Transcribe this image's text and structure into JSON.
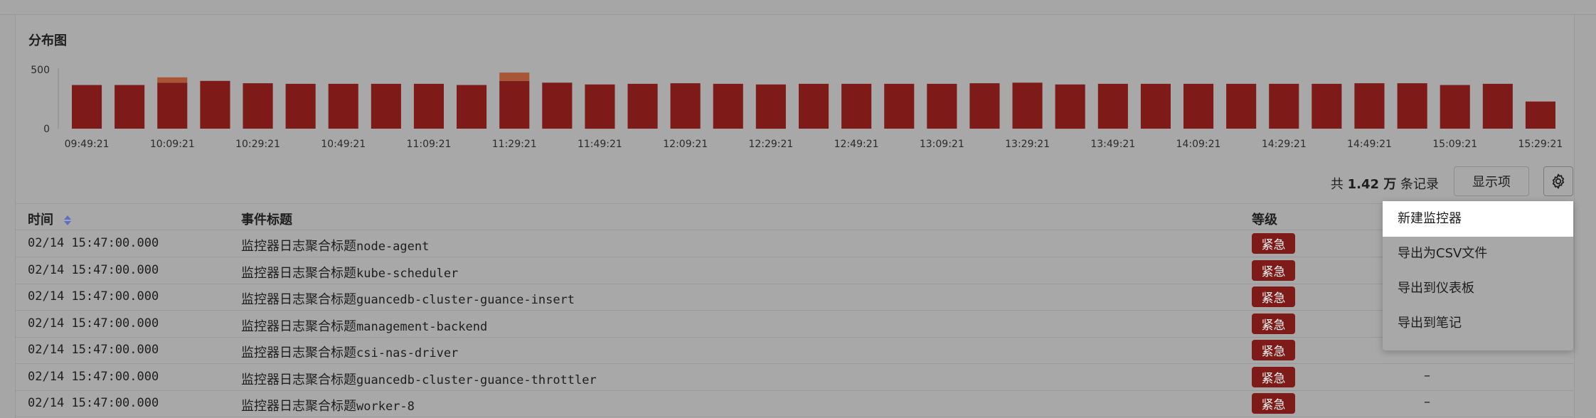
{
  "chart": {
    "title": "分布图"
  },
  "chart_data": {
    "type": "bar",
    "stacked": true,
    "ylim": [
      0,
      500
    ],
    "y_ticks": [
      "500",
      "0"
    ],
    "x_tick_labels": [
      "09:49:21",
      "10:09:21",
      "10:29:21",
      "10:49:21",
      "11:09:21",
      "11:29:21",
      "11:49:21",
      "12:09:21",
      "12:29:21",
      "12:49:21",
      "13:09:21",
      "13:29:21",
      "13:49:21",
      "14:09:21",
      "14:29:21",
      "14:49:21",
      "15:09:21",
      "15:29:21"
    ],
    "series": [
      {
        "color": "#7e1a17",
        "values": [
          370,
          370,
          390,
          405,
          385,
          380,
          380,
          380,
          380,
          370,
          405,
          390,
          375,
          380,
          385,
          380,
          375,
          380,
          380,
          380,
          380,
          385,
          390,
          375,
          380,
          380,
          380,
          380,
          380,
          380,
          385,
          385,
          370,
          380,
          230
        ]
      },
      {
        "color": "#a85636",
        "values": [
          0,
          0,
          45,
          0,
          0,
          0,
          0,
          0,
          0,
          0,
          70,
          0,
          0,
          0,
          0,
          0,
          0,
          0,
          0,
          0,
          0,
          0,
          0,
          0,
          0,
          0,
          0,
          0,
          0,
          0,
          0,
          0,
          0,
          0,
          0
        ]
      }
    ],
    "grid": false,
    "legend": "none"
  },
  "toolbar": {
    "count_prefix": "共 ",
    "count_value": "1.42 万",
    "count_suffix": " 条记录",
    "display_button": "显示项",
    "settings_icon": "gear-icon"
  },
  "table": {
    "headers": {
      "time": "时间",
      "title": "事件标题",
      "level": "等级"
    },
    "rows": [
      {
        "time": "02/14 15:47:00.000",
        "title_prefix": "监控器日志聚合标题",
        "title_suffix": "node-agent",
        "level": "紧急",
        "extra": ""
      },
      {
        "time": "02/14 15:47:00.000",
        "title_prefix": "监控器日志聚合标题",
        "title_suffix": "kube-scheduler",
        "level": "紧急",
        "extra": ""
      },
      {
        "time": "02/14 15:47:00.000",
        "title_prefix": "监控器日志聚合标题",
        "title_suffix": "guancedb-cluster-guance-insert",
        "level": "紧急",
        "extra": ""
      },
      {
        "time": "02/14 15:47:00.000",
        "title_prefix": "监控器日志聚合标题",
        "title_suffix": "management-backend",
        "level": "紧急",
        "extra": ""
      },
      {
        "time": "02/14 15:47:00.000",
        "title_prefix": "监控器日志聚合标题",
        "title_suffix": "csi-nas-driver",
        "level": "紧急",
        "extra": "–"
      },
      {
        "time": "02/14 15:47:00.000",
        "title_prefix": "监控器日志聚合标题",
        "title_suffix": "guancedb-cluster-guance-throttler",
        "level": "紧急",
        "extra": "–"
      },
      {
        "time": "02/14 15:47:00.000",
        "title_prefix": "监控器日志聚合标题",
        "title_suffix": "worker-8",
        "level": "紧急",
        "extra": "–"
      }
    ]
  },
  "menu": {
    "items": [
      "新建监控器",
      "导出为CSV文件",
      "导出到仪表板",
      "导出到笔记"
    ],
    "active_index": 0
  },
  "colors": {
    "background": "#a6a6a6",
    "badge": "#7e1a17",
    "bar_main": "#7e1a17",
    "bar_top": "#a85636"
  }
}
